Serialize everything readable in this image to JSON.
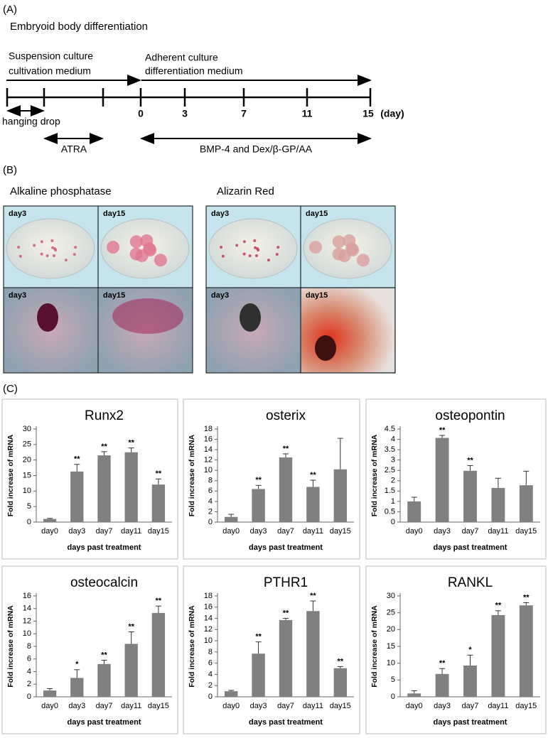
{
  "panel_a": {
    "label": "(A)",
    "title": "Embryoid body differentiation",
    "stage1": [
      "Suspension culture",
      "cultivation medium"
    ],
    "stage2": [
      "Adherent culture",
      "differentiation medium"
    ],
    "days": [
      "0",
      "3",
      "7",
      "11",
      "15"
    ],
    "day_unit": "(day)",
    "hanging_drop": "hanging drop",
    "atra": "ATRA",
    "treatment": "BMP-4 and Dex/β-GP/AA"
  },
  "panel_b": {
    "label": "(B)",
    "stains": [
      "Alkaline phosphatase",
      "Alizarin Red"
    ],
    "photos": [
      "day3",
      "day15",
      "day3",
      "day15",
      "day3",
      "day15",
      "day3",
      "day15"
    ]
  },
  "panel_c": {
    "label": "(C)"
  },
  "chart_data": [
    {
      "type": "bar",
      "title": "Runx2",
      "y_label": "Fold increase of mRNA",
      "x_label": "days past treatment",
      "categories": [
        "day0",
        "day3",
        "day7",
        "day11",
        "day15"
      ],
      "values": [
        1,
        16.3,
        21.5,
        22.5,
        12.1
      ],
      "errors": [
        0.2,
        2.3,
        1.2,
        1.4,
        1.8
      ],
      "significance": [
        null,
        "**",
        "**",
        "**",
        "**"
      ],
      "color": "#808080",
      "ylim": [
        0,
        30
      ],
      "yticks": [
        0,
        5,
        10,
        15,
        20,
        25,
        30
      ]
    },
    {
      "type": "bar",
      "title": "osterix",
      "y_label": "Fold increase of mRNA",
      "x_label": "days past treatment",
      "categories": [
        "day0",
        "day3",
        "day7",
        "day11",
        "day15"
      ],
      "values": [
        1,
        6.4,
        12.5,
        6.8,
        10.2
      ],
      "errors": [
        0.5,
        0.7,
        0.7,
        1.3,
        6
      ],
      "significance": [
        null,
        "**",
        "**",
        "**",
        null
      ],
      "color": "#808080",
      "ylim": [
        0,
        18
      ],
      "yticks": [
        0,
        2,
        4,
        6,
        8,
        10,
        12,
        14,
        16,
        18
      ]
    },
    {
      "type": "bar",
      "title": "osteopontin",
      "y_label": "Fold increase of mRNA",
      "x_label": "days past treatment",
      "categories": [
        "day0",
        "day3",
        "day7",
        "day11",
        "day15"
      ],
      "values": [
        1,
        4.07,
        2.48,
        1.65,
        1.78
      ],
      "errors": [
        0.2,
        0.12,
        0.25,
        0.47,
        0.68
      ],
      "significance": [
        null,
        "**",
        "**",
        null,
        null
      ],
      "color": "#808080",
      "ylim": [
        0,
        4.5
      ],
      "yticks": [
        0,
        0.5,
        1,
        1.5,
        2,
        2.5,
        3,
        3.5,
        4,
        4.5
      ]
    },
    {
      "type": "bar",
      "title": "osteocalcin",
      "y_label": "Fold increase of mRNA",
      "x_label": "days past treatment",
      "categories": [
        "day0",
        "day3",
        "day7",
        "day11",
        "day15"
      ],
      "values": [
        1,
        3,
        5.2,
        8.4,
        13.3
      ],
      "errors": [
        0.3,
        1.3,
        0.6,
        1.9,
        1.1
      ],
      "significance": [
        null,
        "*",
        "**",
        "**",
        "**"
      ],
      "color": "#808080",
      "ylim": [
        0,
        16
      ],
      "yticks": [
        0,
        2,
        4,
        6,
        8,
        10,
        12,
        14,
        16
      ]
    },
    {
      "type": "bar",
      "title": "PTHR1",
      "y_label": "Fold increase of mRNA",
      "x_label": "days past treatment",
      "categories": [
        "day0",
        "day3",
        "day7",
        "day11",
        "day15"
      ],
      "values": [
        1,
        7.7,
        13.7,
        15.3,
        5.1
      ],
      "errors": [
        0.15,
        2.1,
        0.3,
        1.8,
        0.3
      ],
      "significance": [
        null,
        "**",
        "**",
        "**",
        "**"
      ],
      "color": "#808080",
      "ylim": [
        0,
        18
      ],
      "yticks": [
        0,
        2,
        4,
        6,
        8,
        10,
        12,
        14,
        16,
        18
      ]
    },
    {
      "type": "bar",
      "title": "RANKL",
      "y_label": "Fold increase of mRNA",
      "x_label": "days past treatment",
      "categories": [
        "day0",
        "day3",
        "day7",
        "day11",
        "day15"
      ],
      "values": [
        1,
        6.8,
        9.3,
        24.3,
        27.2
      ],
      "errors": [
        0.8,
        1.6,
        3.1,
        1.3,
        0.8
      ],
      "significance": [
        null,
        "**",
        "*",
        "**",
        "**"
      ],
      "color": "#808080",
      "ylim": [
        0,
        30
      ],
      "yticks": [
        0,
        5,
        10,
        15,
        20,
        25,
        30
      ]
    }
  ]
}
